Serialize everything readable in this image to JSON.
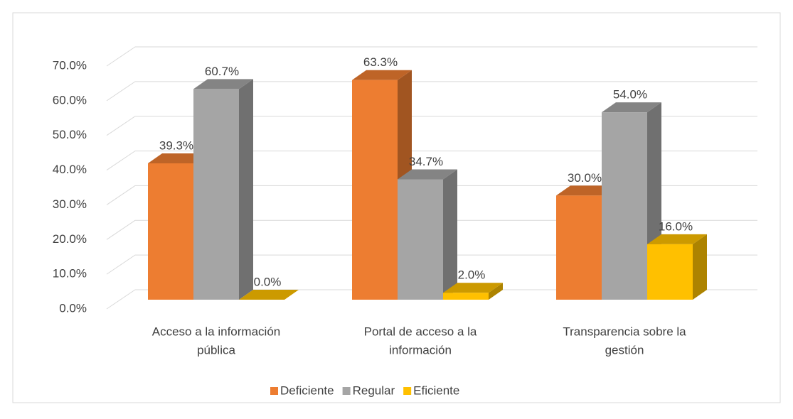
{
  "chart_data": {
    "type": "bar3d",
    "categories": [
      [
        "Acceso a la información",
        "pública"
      ],
      [
        "Portal de acceso a la",
        "información"
      ],
      [
        "Transparencia sobre la",
        "gestión"
      ]
    ],
    "series": [
      {
        "name": "Deficiente",
        "color": "#ED7D31",
        "values": [
          39.3,
          63.3,
          30.0
        ],
        "value_labels": [
          "39.3%",
          "63.3%",
          "30.0%"
        ]
      },
      {
        "name": "Regular",
        "color": "#A5A5A5",
        "values": [
          60.7,
          34.7,
          54.0
        ],
        "value_labels": [
          "60.7%",
          "34.7%",
          "54.0%"
        ]
      },
      {
        "name": "Eficiente",
        "color": "#FFC000",
        "values": [
          0.0,
          2.0,
          16.0
        ],
        "value_labels": [
          "0.0%",
          "2.0%",
          "16.0%"
        ]
      }
    ],
    "ylim": [
      0,
      70
    ],
    "yticks": [
      {
        "value": 0,
        "label": "0.0%"
      },
      {
        "value": 10,
        "label": "10.0%"
      },
      {
        "value": 20,
        "label": "20.0%"
      },
      {
        "value": 30,
        "label": "30.0%"
      },
      {
        "value": 40,
        "label": "40.0%"
      },
      {
        "value": 50,
        "label": "50.0%"
      },
      {
        "value": 60,
        "label": "60.0%"
      },
      {
        "value": 70,
        "label": "70.0%"
      }
    ],
    "grid": true,
    "legend": "bottom"
  }
}
